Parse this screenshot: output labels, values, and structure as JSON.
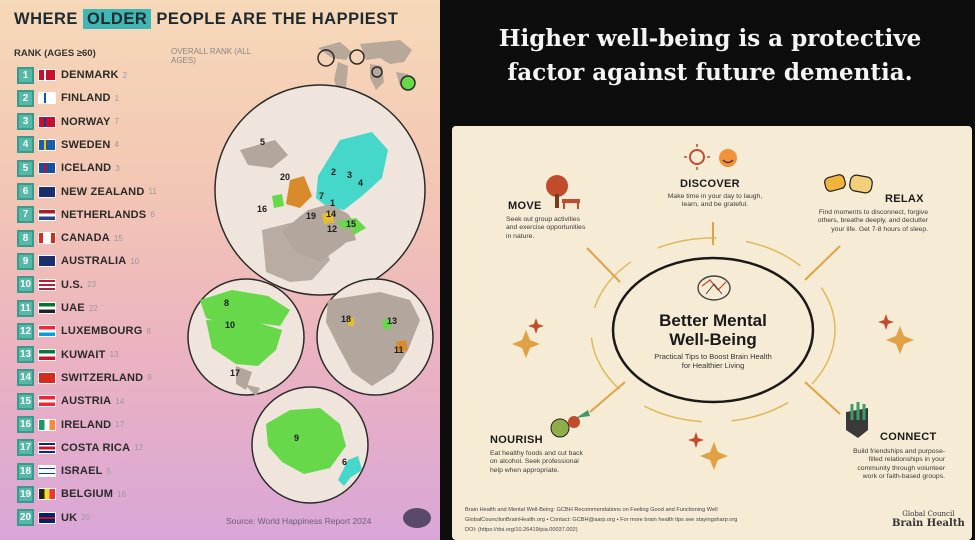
{
  "left": {
    "title_pre": "WHERE",
    "title_hl": "OLDER",
    "title_post": "PEOPLE ARE THE HAPPIEST",
    "rank_header": "RANK (AGES ≥60)",
    "overall_header": "OVERALL RANK (ALL AGES)",
    "source": "Source: World Happiness Report 2024",
    "countries": [
      {
        "rank": "1",
        "name": "DENMARK",
        "overall": "2"
      },
      {
        "rank": "2",
        "name": "FINLAND",
        "overall": "1"
      },
      {
        "rank": "3",
        "name": "NORWAY",
        "overall": "7"
      },
      {
        "rank": "4",
        "name": "SWEDEN",
        "overall": "4"
      },
      {
        "rank": "5",
        "name": "ICELAND",
        "overall": "3"
      },
      {
        "rank": "6",
        "name": "NEW ZEALAND",
        "overall": "11"
      },
      {
        "rank": "7",
        "name": "NETHERLANDS",
        "overall": "6"
      },
      {
        "rank": "8",
        "name": "CANADA",
        "overall": "15"
      },
      {
        "rank": "9",
        "name": "AUSTRALIA",
        "overall": "10"
      },
      {
        "rank": "10",
        "name": "U.S.",
        "overall": "23"
      },
      {
        "rank": "11",
        "name": "UAE",
        "overall": "22"
      },
      {
        "rank": "12",
        "name": "LUXEMBOURG",
        "overall": "8"
      },
      {
        "rank": "13",
        "name": "KUWAIT",
        "overall": "13"
      },
      {
        "rank": "14",
        "name": "SWITZERLAND",
        "overall": "9"
      },
      {
        "rank": "15",
        "name": "AUSTRIA",
        "overall": "14"
      },
      {
        "rank": "16",
        "name": "IRELAND",
        "overall": "17"
      },
      {
        "rank": "17",
        "name": "COSTA RICA",
        "overall": "12"
      },
      {
        "rank": "18",
        "name": "ISRAEL",
        "overall": "5"
      },
      {
        "rank": "19",
        "name": "BELGIUM",
        "overall": "16"
      },
      {
        "rank": "20",
        "name": "UK",
        "overall": "20"
      }
    ],
    "map_labels": {
      "europe": [
        "5",
        "20",
        "3",
        "4",
        "2",
        "1",
        "7",
        "16",
        "19",
        "14",
        "12",
        "15"
      ],
      "america": [
        "8",
        "10",
        "17"
      ],
      "mideast": [
        "18",
        "13",
        "11"
      ],
      "oceania": [
        "9",
        "6"
      ]
    }
  },
  "right": {
    "headline_1": "Higher well-being is a protective",
    "headline_2": "factor against future dementia.",
    "center_title_1": "Better Mental",
    "center_title_2": "Well-Being",
    "center_sub_1": "Practical Tips to Boost Brain Health",
    "center_sub_2": "for Healthier Living",
    "move_title": "MOVE",
    "move_text": [
      "Seek out group activities",
      "and exercise opportunities",
      "in nature."
    ],
    "discover_title": "DISCOVER",
    "discover_text": [
      "Make time in your day to laugh,",
      "learn, and be grateful."
    ],
    "relax_title": "RELAX",
    "relax_text": [
      "Find moments to disconnect, forgive",
      "others, breathe deeply, and declutter",
      "your life. Get 7-8 hours of sleep."
    ],
    "nourish_title": "NOURISH",
    "nourish_text": [
      "Eat healthy foods and cut back",
      "on alcohol. Seek professional",
      "help when appropriate."
    ],
    "connect_title": "CONNECT",
    "connect_text": [
      "Build friendships and purpose-",
      "filled relationships in your",
      "community through volunteer",
      "work or faith-based groups."
    ],
    "footer_1": "Brain Health and Mental Well-Being: GCBH Recommendations on Feeling Good and Functioning Well",
    "footer_2": "GlobalCouncilonBrainHealth.org • Contact: GCBH@aarp.org • For more brain health tips see stayingsharp.org",
    "footer_3": "DOI: (https://doi.org/10.26419/pia.00037.002)",
    "gcbh_1": "Global Council",
    "gcbh_2": "Brain Health"
  },
  "colors": {
    "teal": "#55b8a8",
    "map_green": "#66d84a",
    "map_cyan": "#45d7c9",
    "headline": "#f5f5f5",
    "panel": "#f6ecd6"
  }
}
